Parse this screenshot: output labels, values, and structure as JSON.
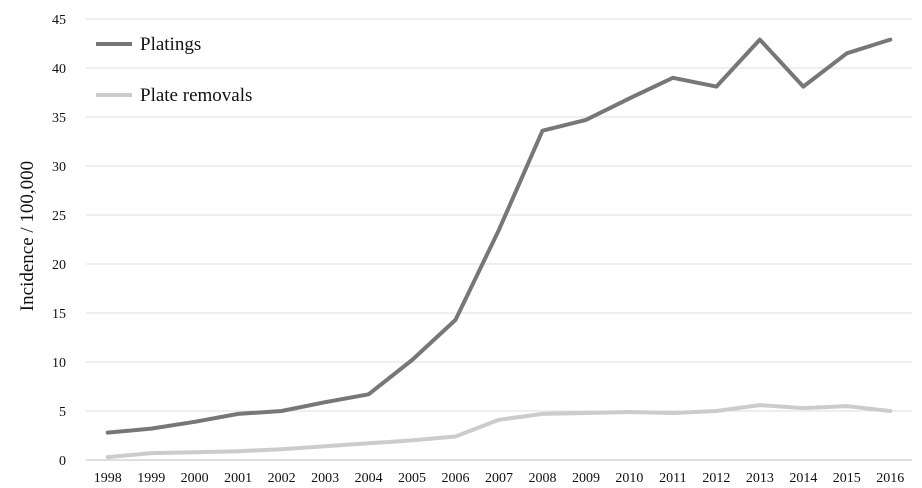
{
  "chart_data": {
    "type": "line",
    "title": "",
    "xlabel": "",
    "ylabel": "Incidence / 100,000",
    "categories": [
      "1998",
      "1999",
      "2000",
      "2001",
      "2002",
      "2003",
      "2004",
      "2005",
      "2006",
      "2007",
      "2008",
      "2009",
      "2010",
      "2011",
      "2012",
      "2013",
      "2014",
      "2015",
      "2016"
    ],
    "ylim": [
      0,
      45
    ],
    "yticks": [
      "0",
      "5",
      "10",
      "15",
      "20",
      "25",
      "30",
      "35",
      "40",
      "45"
    ],
    "grid": true,
    "legend_position": "top-left",
    "series": [
      {
        "name": "Platings",
        "color": "#777777",
        "values": [
          2.8,
          3.2,
          3.9,
          4.7,
          5.0,
          5.9,
          6.7,
          10.2,
          14.3,
          23.5,
          33.6,
          34.7,
          36.9,
          39.0,
          38.1,
          42.9,
          38.1,
          41.5,
          42.9
        ]
      },
      {
        "name": "Plate removals",
        "color": "#cccccc",
        "values": [
          0.3,
          0.7,
          0.8,
          0.9,
          1.1,
          1.4,
          1.7,
          2.0,
          2.4,
          4.1,
          4.7,
          4.8,
          4.9,
          4.8,
          5.0,
          5.6,
          5.3,
          5.5,
          5.0
        ]
      }
    ]
  }
}
